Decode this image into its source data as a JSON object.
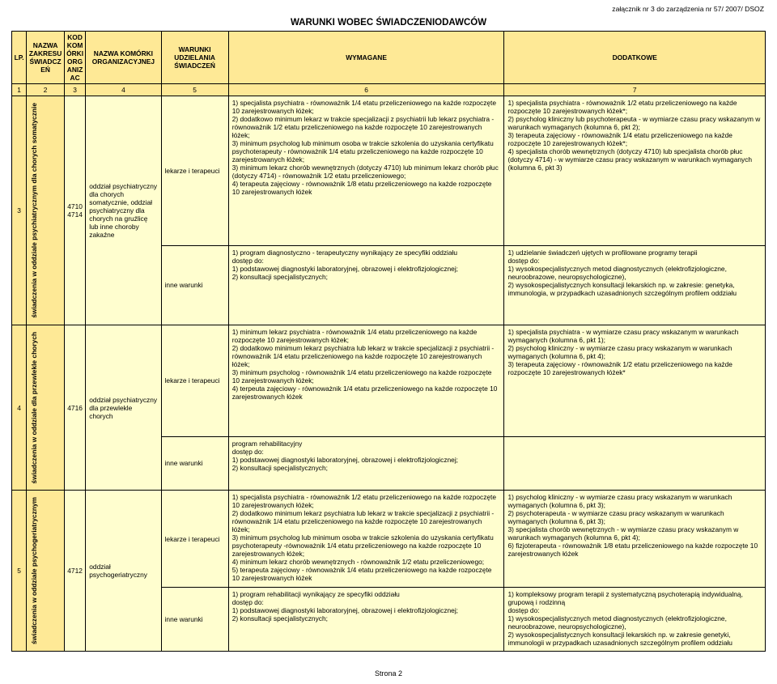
{
  "colors": {
    "band": "#fee996",
    "field": "#fffecf",
    "border": "#000000",
    "bg": "#ffffff"
  },
  "top_note": "załącznik nr 3 do zarządzenia nr 57/ 2007/ DSOZ",
  "title": "WARUNKI WOBEC ŚWIADCZENIODAWCÓW",
  "page_label": "Strona 2",
  "headers": {
    "c1": "LP.",
    "c2": "NAZWA ZAKRESU ŚWIADCZEŃ",
    "c3": "KOD KOMÓRKI ORGANIZAC",
    "c4": "NAZWA KOMÓRKI ORGANIZACYJNEJ",
    "c5": "WARUNKI UDZIELANIA ŚWIADCZEŃ",
    "c6": "WYMAGANE",
    "c7": "DODATKOWE"
  },
  "numrow": {
    "c1": "1",
    "c2": "2",
    "c3": "3",
    "c4": "4",
    "c5": "5",
    "c6": "6",
    "c7": "7"
  },
  "rows": [
    {
      "lp": "3",
      "name": "świadczenia w oddziale psychiatrycznym dla chorych somatycznie",
      "codes": "4710\n4714",
      "unit": "oddział psychiatryczny dla chorych somatycznie, oddział psychiatryczny dla chorych na gruźlicę lub inne choroby zakaźne",
      "cond1": "lekarze i terapeuci",
      "req1": "1) specjalista psychiatra - równoważnik 1/4 etatu przeliczeniowego na każde rozpoczęte 10 zarejestrowanych łóżek;\n2) dodatkowo minimum lekarz w trakcie specjalizacji z psychiatrii lub lekarz psychiatra - równoważnik 1/2 etatu przeliczeniowego na każde rozpoczęte 10 zarejestrowanych łóżek;\n3) minimum psycholog lub minimum osoba w trakcie szkolenia do uzyskania certyfikatu psychoterapeuty - równoważnik 1/4 etatu przeliczeniowego na każde rozpoczęte 10 zarejestrowanych łóżek;\n3) minimum lekarz chorób wewnętrznych (dotyczy 4710) lub minimum lekarz chorób płuc (dotyczy 4714) - równoważnik 1/2 etatu przeliczeniowego;\n4) terapeuta zajęciowy - równoważnik 1/8 etatu przeliczeniowego na każde rozpoczęte 10 zarejestrowanych łóżek",
      "add1": "1) specjalista psychiatra - równoważnik 1/2 etatu przeliczeniowego na każde rozpoczęte 10 zarejestrowanych łóżek*;\n2) psycholog kliniczny lub psychoterapeuta - w wymiarze czasu pracy wskazanym w warunkach wymaganych (kolumna 6, pkt 2);\n3) terapeuta zajęciowy - równoważnik 1/4 etatu przeliczeniowego na każde rozpoczęte 10 zarejestrowanych łóżek*;\n4) specjalista chorób wewnętrznych (dotyczy 4710) lub specjalista chorób płuc (dotyczy 4714) - w wymiarze czasu pracy wskazanym w warunkach wymaganych (kolumna 6, pkt 3)",
      "cond2": "inne warunki",
      "req2": "1) program diagnostyczno - terapeutyczny wynikający ze specyfiki oddziału\ndostęp do:\n1) podstawowej diagnostyki laboratoryjnej, obrazowej i elektrofizjologicznej;\n2) konsultacji specjalistycznych;",
      "add2": "1) udzielanie świadczeń ujętych w profilowane programy terapii\ndostęp do:\n1) wysokospecjalistycznych metod diagnostycznych (elektrofizjologiczne, neuroobrazowe, neuropsychologiczne),\n2) wysokospecjalistycznych konsultacji lekarskich np. w zakresie: genetyka, immunologia, w przypadkach uzasadnionych szczególnym profilem oddziału"
    },
    {
      "lp": "4",
      "name": "świadczenia w oddziale dla przewlekle chorych",
      "codes": "4716",
      "unit": "oddział psychiatryczny dla przewlekle chorych",
      "cond1": "lekarze i terapeuci",
      "req1": "1) minimum lekarz psychiatra - równoważnik 1/4 etatu przeliczeniowego na każde rozpoczęte 10 zarejestrowanych łóżek;\n2) dodatkowo minimum lekarz psychiatra lub lekarz w trakcie specjalizacji z psychiatrii - równoważnik 1/4 etatu przeliczeniowego na każde rozpoczęte 10 zarejestrowanych łóżek;\n3) minimum psycholog - równoważnik 1/4 etatu przeliczeniowego na każde rozpoczęte 10 zarejestrowanych łóżek;\n4) terpeuta zajęciowy - równoważnik 1/4 etatu przeliczeniowego na każde rozpoczęte 10 zarejestrowanych łóżek",
      "add1": "1) specjalista psychiatra - w wymiarze czasu pracy wskazanym w warunkach wymaganych (kolumna 6, pkt 1);\n2) psycholog kliniczny - w wymiarze czasu pracy wskazanym w warunkach wymaganych (kolumna 6, pkt 4);\n3) terapeuta zajęciowy - równoważnik 1/2 etatu przeliczeniowego na każde rozpoczęte 10 zarejestrowanych łóżek*",
      "cond2": "inne warunki",
      "req2": "program rehabilitacyjny\ndostęp do:\n1) podstawowej diagnostyki laboratoryjnej, obrazowej i elektrofizjologicznej;\n2) konsultacji specjalistycznych;",
      "add2": ""
    },
    {
      "lp": "5",
      "name": "świadczenia w oddziale psychogeriatrycznym",
      "codes": "4712",
      "unit": "oddział psychogeriatryczny",
      "cond1": "lekarze i terapeuci",
      "req1": "1) specjalista psychiatra - równoważnik 1/2 etatu przeliczeniowego na każde rozpoczęte 10 zarejestrowanych łóżek;\n2) dodatkowo minimum lekarz psychiatra lub lekarz w trakcie specjalizacji z psychiatrii - równoważnik 1/4 etatu przeliczeniowego na każde rozpoczęte 10 zarejestrowanych łóżek;\n3) minimum psycholog lub minimum osoba w trakcie szkolenia do uzyskania certyfikatu psychoterapeuty -równoważnik 1/4 etatu przeliczeniowego na każde rozpoczęte 10 zarejestrowanych łóżek;\n4) minimum lekarz chorób wewnętrznych - równoważnik 1/2 etatu przeliczeniowego;\n5) terapeuta zajęciowy - równoważnik 1/4 etatu przeliczeniowego na każde rozpoczęte 10 zarejestrowanych łóżek",
      "add1": "1) psycholog kliniczny - w wymiarze czasu pracy wskazanym w warunkach wymaganych (kolumna 6, pkt 3);\n2) psychoterapeuta - w wymiarze czasu pracy wskazanym w warunkach wymaganych (kolumna 6, pkt 3);\n3) specjalista chorób wewnętrznych - w wymiarze czasu pracy wskazanym w warunkach wymaganych (kolumna 6, pkt 4);\n6) fizjoterapeuta - równoważnik 1/8 etatu przeliczeniowego na każde rozpoczęte 10 zarejestrowanych łóżek",
      "cond2": "inne warunki",
      "req2": "1) program rehabilitacji wynikający ze specyfiki oddziału\ndostęp do:\n1) podstawowej diagnostyki laboratoryjnej, obrazowej i elektrofizjologicznej;\n2) konsultacji specjalistycznych;",
      "add2": "1) kompleksowy program terapii z systematyczną psychoterapią indywidualną, grupową i rodzinną\ndostęp do:\n1) wysokospecjalistycznych metod diagnostycznych (elektrofizjologiczne, neuroobrazowe, neuropsychologiczne),\n2) wysokospecjalistycznych konsultacji lekarskich np. w zakresie genetyki, immunologii w przypadkach uzasadnionych szczególnym profilem oddziału"
    }
  ]
}
